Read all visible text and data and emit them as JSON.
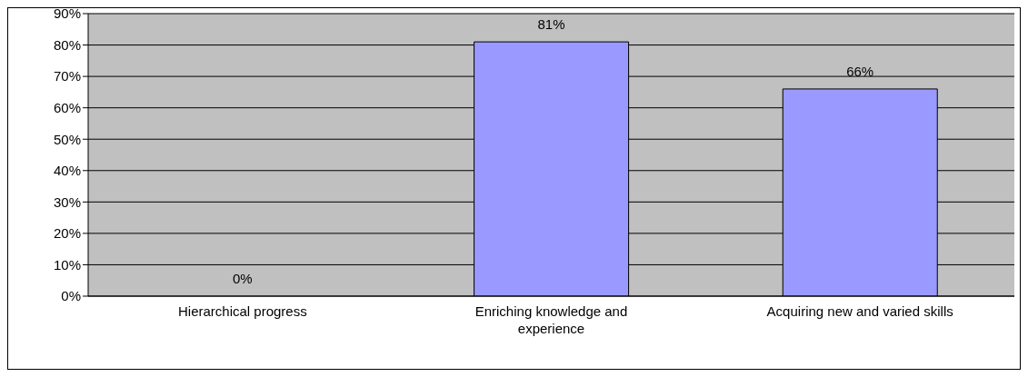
{
  "chart_data": {
    "type": "bar",
    "categories": [
      "Hierarchical progress",
      "Enriching knowledge and experience",
      "Acquiring new and varied skills"
    ],
    "values": [
      0,
      81,
      66
    ],
    "color": "#9999ff",
    "value_labels": [
      "0%",
      "81%",
      "66%"
    ],
    "ylim": [
      0,
      90
    ],
    "yticks": [
      {
        "value": 0,
        "label": "0%"
      },
      {
        "value": 10,
        "label": "10%"
      },
      {
        "value": 20,
        "label": "20%"
      },
      {
        "value": 30,
        "label": "30%"
      },
      {
        "value": 40,
        "label": "40%"
      },
      {
        "value": 50,
        "label": "50%"
      },
      {
        "value": 60,
        "label": "60%"
      },
      {
        "value": 70,
        "label": "70%"
      },
      {
        "value": 80,
        "label": "80%"
      },
      {
        "value": 90,
        "label": "90%"
      }
    ],
    "grid": "y",
    "legend": false
  }
}
